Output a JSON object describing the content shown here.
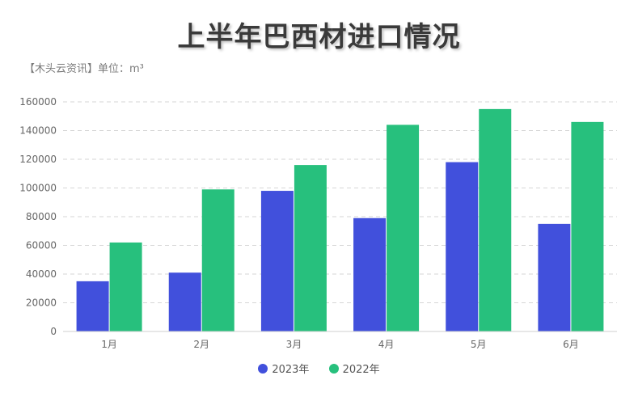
{
  "chart_data": {
    "type": "bar",
    "title": "上半年巴西材进口情况",
    "subtitle": "【木头云资讯】单位：m³",
    "categories": [
      "1月",
      "2月",
      "3月",
      "4月",
      "5月",
      "6月"
    ],
    "series": [
      {
        "name": "2023年",
        "color": "#4150dc",
        "values": [
          35000,
          41000,
          98000,
          79000,
          118000,
          75000
        ]
      },
      {
        "name": "2022年",
        "color": "#27c07d",
        "values": [
          62000,
          99000,
          116000,
          144000,
          155000,
          146000
        ]
      }
    ],
    "ylim": [
      0,
      160000
    ],
    "yticks": [
      0,
      20000,
      40000,
      60000,
      80000,
      100000,
      120000,
      140000,
      160000
    ],
    "grid": true,
    "legend_position": "bottom-center"
  }
}
